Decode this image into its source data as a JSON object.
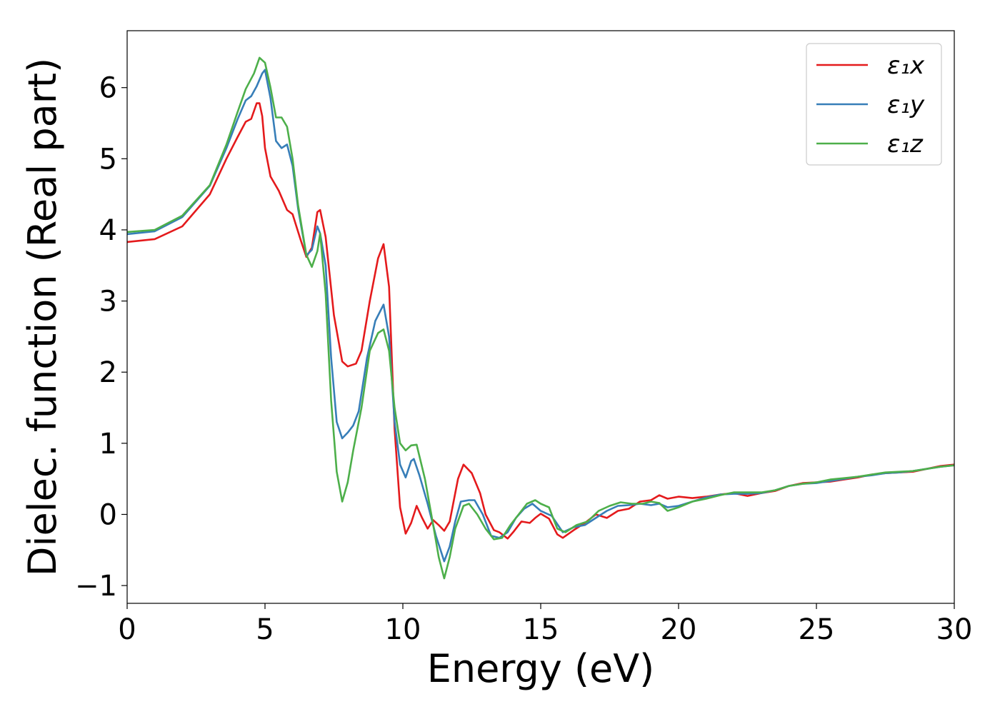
{
  "chart_data": {
    "type": "line",
    "title": "",
    "xlabel": "Energy (eV)",
    "ylabel": "Dielec. function (Real part)",
    "xlim": [
      0,
      30
    ],
    "ylim": [
      -1.25,
      6.8
    ],
    "xticks": [
      0,
      5,
      10,
      15,
      20,
      25,
      30
    ],
    "xtick_labels": [
      "0",
      "5",
      "10",
      "15",
      "20",
      "25",
      "30"
    ],
    "yticks": [
      -1,
      0,
      1,
      2,
      3,
      4,
      5,
      6
    ],
    "ytick_labels": [
      "−1",
      "0",
      "1",
      "2",
      "3",
      "4",
      "5",
      "6"
    ],
    "grid": false,
    "legend_position": "top-right",
    "series": [
      {
        "name": "ε₁x",
        "color": "#e41a1c",
        "points": [
          [
            0,
            3.83
          ],
          [
            1,
            3.87
          ],
          [
            2,
            4.05
          ],
          [
            3,
            4.5
          ],
          [
            3.6,
            5.0
          ],
          [
            4.0,
            5.3
          ],
          [
            4.3,
            5.52
          ],
          [
            4.5,
            5.56
          ],
          [
            4.7,
            5.78
          ],
          [
            4.8,
            5.78
          ],
          [
            4.9,
            5.6
          ],
          [
            5.0,
            5.15
          ],
          [
            5.2,
            4.75
          ],
          [
            5.5,
            4.55
          ],
          [
            5.8,
            4.28
          ],
          [
            6.0,
            4.22
          ],
          [
            6.3,
            3.85
          ],
          [
            6.5,
            3.62
          ],
          [
            6.7,
            3.75
          ],
          [
            6.9,
            4.25
          ],
          [
            7.0,
            4.28
          ],
          [
            7.2,
            3.9
          ],
          [
            7.5,
            2.8
          ],
          [
            7.8,
            2.15
          ],
          [
            8.0,
            2.08
          ],
          [
            8.3,
            2.12
          ],
          [
            8.5,
            2.3
          ],
          [
            8.8,
            3.0
          ],
          [
            9.1,
            3.6
          ],
          [
            9.3,
            3.8
          ],
          [
            9.5,
            3.2
          ],
          [
            9.7,
            1.2
          ],
          [
            9.9,
            0.1
          ],
          [
            10.1,
            -0.27
          ],
          [
            10.3,
            -0.12
          ],
          [
            10.5,
            0.12
          ],
          [
            10.7,
            -0.05
          ],
          [
            10.9,
            -0.2
          ],
          [
            11.1,
            -0.08
          ],
          [
            11.3,
            -0.15
          ],
          [
            11.5,
            -0.23
          ],
          [
            11.7,
            -0.1
          ],
          [
            12.0,
            0.5
          ],
          [
            12.2,
            0.7
          ],
          [
            12.5,
            0.58
          ],
          [
            12.8,
            0.3
          ],
          [
            13.0,
            0.0
          ],
          [
            13.3,
            -0.22
          ],
          [
            13.5,
            -0.25
          ],
          [
            13.8,
            -0.34
          ],
          [
            14.0,
            -0.25
          ],
          [
            14.3,
            -0.1
          ],
          [
            14.6,
            -0.12
          ],
          [
            14.8,
            -0.05
          ],
          [
            15.0,
            0.01
          ],
          [
            15.3,
            -0.06
          ],
          [
            15.6,
            -0.28
          ],
          [
            15.8,
            -0.33
          ],
          [
            16.2,
            -0.22
          ],
          [
            16.6,
            -0.12
          ],
          [
            17.0,
            0.0
          ],
          [
            17.4,
            -0.05
          ],
          [
            17.8,
            0.05
          ],
          [
            18.2,
            0.08
          ],
          [
            18.6,
            0.18
          ],
          [
            19.0,
            0.2
          ],
          [
            19.3,
            0.27
          ],
          [
            19.6,
            0.22
          ],
          [
            20.0,
            0.25
          ],
          [
            20.5,
            0.23
          ],
          [
            21.0,
            0.25
          ],
          [
            21.5,
            0.28
          ],
          [
            22.0,
            0.3
          ],
          [
            22.5,
            0.26
          ],
          [
            23.0,
            0.3
          ],
          [
            23.5,
            0.33
          ],
          [
            24.0,
            0.4
          ],
          [
            24.5,
            0.44
          ],
          [
            25.0,
            0.45
          ],
          [
            25.5,
            0.46
          ],
          [
            26.0,
            0.49
          ],
          [
            26.5,
            0.52
          ],
          [
            27.0,
            0.56
          ],
          [
            27.5,
            0.58
          ],
          [
            28.0,
            0.59
          ],
          [
            28.5,
            0.6
          ],
          [
            29.0,
            0.64
          ],
          [
            29.5,
            0.68
          ],
          [
            30.0,
            0.7
          ]
        ]
      },
      {
        "name": "ε₁y",
        "color": "#377eb8",
        "points": [
          [
            0,
            3.94
          ],
          [
            1,
            3.98
          ],
          [
            2,
            4.18
          ],
          [
            3,
            4.62
          ],
          [
            3.6,
            5.15
          ],
          [
            4.0,
            5.55
          ],
          [
            4.3,
            5.82
          ],
          [
            4.5,
            5.88
          ],
          [
            4.7,
            6.02
          ],
          [
            4.9,
            6.2
          ],
          [
            5.0,
            6.25
          ],
          [
            5.2,
            5.85
          ],
          [
            5.4,
            5.25
          ],
          [
            5.6,
            5.15
          ],
          [
            5.8,
            5.2
          ],
          [
            6.0,
            4.9
          ],
          [
            6.2,
            4.3
          ],
          [
            6.5,
            3.64
          ],
          [
            6.7,
            3.72
          ],
          [
            6.9,
            4.05
          ],
          [
            7.0,
            3.95
          ],
          [
            7.2,
            3.5
          ],
          [
            7.4,
            2.2
          ],
          [
            7.6,
            1.3
          ],
          [
            7.8,
            1.07
          ],
          [
            8.0,
            1.15
          ],
          [
            8.2,
            1.25
          ],
          [
            8.4,
            1.45
          ],
          [
            8.7,
            2.2
          ],
          [
            9.0,
            2.72
          ],
          [
            9.3,
            2.95
          ],
          [
            9.5,
            2.5
          ],
          [
            9.7,
            1.3
          ],
          [
            9.9,
            0.7
          ],
          [
            10.1,
            0.52
          ],
          [
            10.3,
            0.75
          ],
          [
            10.4,
            0.78
          ],
          [
            10.6,
            0.55
          ],
          [
            10.9,
            0.15
          ],
          [
            11.2,
            -0.3
          ],
          [
            11.5,
            -0.66
          ],
          [
            11.7,
            -0.45
          ],
          [
            11.9,
            -0.1
          ],
          [
            12.1,
            0.18
          ],
          [
            12.4,
            0.2
          ],
          [
            12.6,
            0.2
          ],
          [
            12.9,
            0.0
          ],
          [
            13.2,
            -0.3
          ],
          [
            13.5,
            -0.33
          ],
          [
            13.8,
            -0.25
          ],
          [
            14.1,
            -0.05
          ],
          [
            14.4,
            0.08
          ],
          [
            14.7,
            0.15
          ],
          [
            15.0,
            0.05
          ],
          [
            15.4,
            -0.02
          ],
          [
            15.8,
            -0.25
          ],
          [
            16.2,
            -0.18
          ],
          [
            16.6,
            -0.15
          ],
          [
            17.0,
            -0.05
          ],
          [
            17.4,
            0.05
          ],
          [
            17.8,
            0.12
          ],
          [
            18.2,
            0.13
          ],
          [
            18.6,
            0.15
          ],
          [
            19.0,
            0.13
          ],
          [
            19.3,
            0.15
          ],
          [
            19.6,
            0.1
          ],
          [
            20.0,
            0.12
          ],
          [
            20.5,
            0.18
          ],
          [
            21.0,
            0.24
          ],
          [
            21.5,
            0.28
          ],
          [
            22.0,
            0.29
          ],
          [
            22.5,
            0.29
          ],
          [
            23.0,
            0.3
          ],
          [
            23.5,
            0.34
          ],
          [
            24.0,
            0.4
          ],
          [
            24.5,
            0.43
          ],
          [
            25.0,
            0.44
          ],
          [
            25.5,
            0.47
          ],
          [
            26.0,
            0.5
          ],
          [
            26.5,
            0.53
          ],
          [
            27.0,
            0.55
          ],
          [
            27.5,
            0.58
          ],
          [
            28.0,
            0.59
          ],
          [
            28.5,
            0.61
          ],
          [
            29.0,
            0.64
          ],
          [
            29.5,
            0.67
          ],
          [
            30.0,
            0.69
          ]
        ]
      },
      {
        "name": "ε₁z",
        "color": "#4daf4a",
        "points": [
          [
            0,
            3.97
          ],
          [
            1,
            4.0
          ],
          [
            2,
            4.2
          ],
          [
            3,
            4.63
          ],
          [
            3.6,
            5.2
          ],
          [
            4.0,
            5.65
          ],
          [
            4.3,
            5.98
          ],
          [
            4.6,
            6.2
          ],
          [
            4.8,
            6.42
          ],
          [
            5.0,
            6.35
          ],
          [
            5.2,
            6.0
          ],
          [
            5.4,
            5.58
          ],
          [
            5.6,
            5.58
          ],
          [
            5.8,
            5.45
          ],
          [
            6.0,
            5.0
          ],
          [
            6.2,
            4.35
          ],
          [
            6.5,
            3.65
          ],
          [
            6.7,
            3.48
          ],
          [
            6.9,
            3.7
          ],
          [
            7.0,
            3.95
          ],
          [
            7.2,
            3.1
          ],
          [
            7.4,
            1.6
          ],
          [
            7.6,
            0.6
          ],
          [
            7.8,
            0.18
          ],
          [
            8.0,
            0.45
          ],
          [
            8.2,
            0.9
          ],
          [
            8.5,
            1.5
          ],
          [
            8.8,
            2.3
          ],
          [
            9.1,
            2.55
          ],
          [
            9.3,
            2.6
          ],
          [
            9.5,
            2.3
          ],
          [
            9.7,
            1.5
          ],
          [
            9.9,
            1.0
          ],
          [
            10.1,
            0.9
          ],
          [
            10.3,
            0.97
          ],
          [
            10.5,
            0.98
          ],
          [
            10.8,
            0.5
          ],
          [
            11.1,
            -0.15
          ],
          [
            11.3,
            -0.6
          ],
          [
            11.5,
            -0.9
          ],
          [
            11.7,
            -0.6
          ],
          [
            11.9,
            -0.2
          ],
          [
            12.2,
            0.12
          ],
          [
            12.4,
            0.15
          ],
          [
            12.7,
            0.0
          ],
          [
            13.0,
            -0.2
          ],
          [
            13.3,
            -0.35
          ],
          [
            13.6,
            -0.33
          ],
          [
            13.9,
            -0.15
          ],
          [
            14.2,
            0.0
          ],
          [
            14.5,
            0.15
          ],
          [
            14.8,
            0.2
          ],
          [
            15.0,
            0.15
          ],
          [
            15.3,
            0.1
          ],
          [
            15.6,
            -0.2
          ],
          [
            15.9,
            -0.25
          ],
          [
            16.3,
            -0.15
          ],
          [
            16.7,
            -0.1
          ],
          [
            17.1,
            0.05
          ],
          [
            17.5,
            0.12
          ],
          [
            17.9,
            0.17
          ],
          [
            18.3,
            0.15
          ],
          [
            18.7,
            0.15
          ],
          [
            19.0,
            0.18
          ],
          [
            19.3,
            0.16
          ],
          [
            19.6,
            0.05
          ],
          [
            20.0,
            0.1
          ],
          [
            20.5,
            0.18
          ],
          [
            21.0,
            0.22
          ],
          [
            21.5,
            0.27
          ],
          [
            22.0,
            0.31
          ],
          [
            22.5,
            0.31
          ],
          [
            23.0,
            0.31
          ],
          [
            23.5,
            0.34
          ],
          [
            24.0,
            0.4
          ],
          [
            24.5,
            0.43
          ],
          [
            25.0,
            0.45
          ],
          [
            25.5,
            0.49
          ],
          [
            26.0,
            0.51
          ],
          [
            26.5,
            0.53
          ],
          [
            27.0,
            0.56
          ],
          [
            27.5,
            0.59
          ],
          [
            28.0,
            0.6
          ],
          [
            28.5,
            0.61
          ],
          [
            29.0,
            0.64
          ],
          [
            29.5,
            0.67
          ],
          [
            30.0,
            0.69
          ]
        ]
      }
    ]
  }
}
